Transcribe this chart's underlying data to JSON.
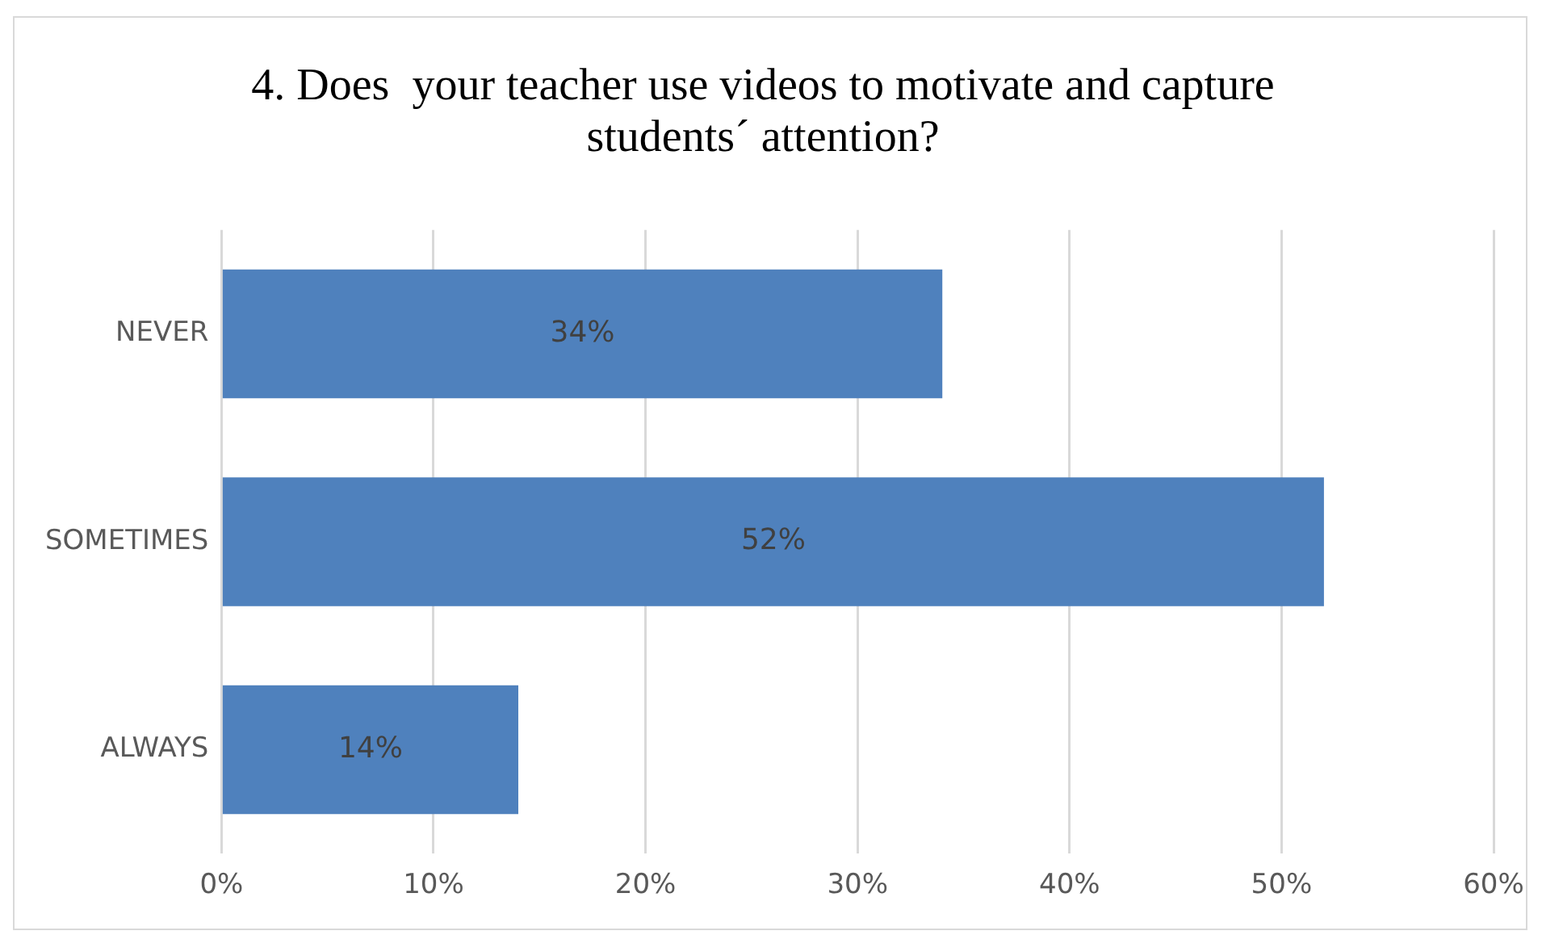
{
  "chart_data": {
    "type": "bar",
    "orientation": "horizontal",
    "title": "4. Does  your teacher use videos to motivate and capture students´ attention?",
    "categories": [
      "NEVER",
      "SOMETIMES",
      "ALWAYS"
    ],
    "values": [
      34,
      52,
      14
    ],
    "value_labels": [
      "34%",
      "52%",
      "14%"
    ],
    "color": "#4f81bd",
    "xlim": [
      0,
      60
    ],
    "xticks": [
      {
        "value": 0,
        "label": "0%"
      },
      {
        "value": 10,
        "label": "10%"
      },
      {
        "value": 20,
        "label": "20%"
      },
      {
        "value": 30,
        "label": "30%"
      },
      {
        "value": 40,
        "label": "40%"
      },
      {
        "value": 50,
        "label": "50%"
      },
      {
        "value": 60,
        "label": "60%"
      }
    ],
    "grid": "x",
    "legend": false
  }
}
